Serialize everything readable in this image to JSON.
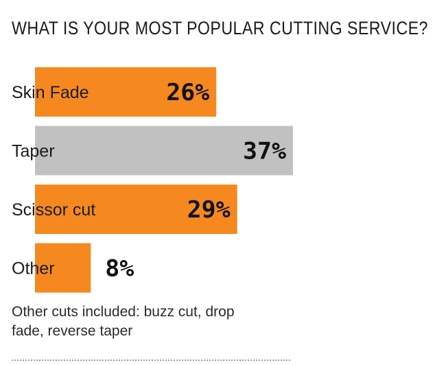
{
  "chart_data": {
    "type": "bar",
    "orientation": "horizontal",
    "title": "WHAT IS YOUR MOST POPULAR CUTTING SERVICE?",
    "categories": [
      "Skin Fade",
      "Taper",
      "Scissor cut",
      "Other"
    ],
    "values": [
      26,
      37,
      29,
      8
    ],
    "value_labels": [
      "26%",
      "37%",
      "29%",
      "8%"
    ],
    "colors": [
      "#f5891f",
      "#c1c1c1",
      "#f5891f",
      "#f5891f"
    ],
    "grid": false,
    "note": "Other cuts included: buzz cut, drop fade, reverse taper"
  }
}
